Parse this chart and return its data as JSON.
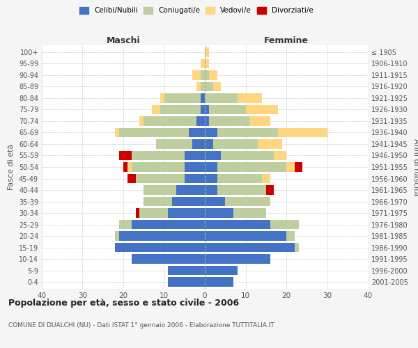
{
  "age_groups": [
    "0-4",
    "5-9",
    "10-14",
    "15-19",
    "20-24",
    "25-29",
    "30-34",
    "35-39",
    "40-44",
    "45-49",
    "50-54",
    "55-59",
    "60-64",
    "65-69",
    "70-74",
    "75-79",
    "80-84",
    "85-89",
    "90-94",
    "95-99",
    "100+"
  ],
  "birth_years": [
    "2001-2005",
    "1996-2000",
    "1991-1995",
    "1986-1990",
    "1981-1985",
    "1976-1980",
    "1971-1975",
    "1966-1970",
    "1961-1965",
    "1956-1960",
    "1951-1955",
    "1946-1950",
    "1941-1945",
    "1936-1940",
    "1931-1935",
    "1926-1930",
    "1921-1925",
    "1916-1920",
    "1911-1915",
    "1906-1910",
    "≤ 1905"
  ],
  "colors": {
    "celibi": "#4472C4",
    "coniugati": "#BFCE9E",
    "vedovi": "#FFD580",
    "divorziati": "#CC0000"
  },
  "maschi": {
    "celibi": [
      9,
      9,
      18,
      22,
      21,
      18,
      9,
      8,
      7,
      5,
      5,
      5,
      3,
      4,
      2,
      1,
      1,
      0,
      0,
      0,
      0
    ],
    "coniugati": [
      0,
      0,
      0,
      0,
      1,
      3,
      7,
      7,
      8,
      12,
      13,
      13,
      9,
      17,
      13,
      10,
      9,
      1,
      1,
      0,
      0
    ],
    "vedovi": [
      0,
      0,
      0,
      0,
      0,
      0,
      0,
      0,
      0,
      0,
      1,
      0,
      0,
      1,
      1,
      2,
      1,
      1,
      2,
      1,
      0
    ],
    "divorziati": [
      0,
      0,
      0,
      0,
      0,
      0,
      1,
      0,
      0,
      2,
      1,
      3,
      0,
      0,
      0,
      0,
      0,
      0,
      0,
      0,
      0
    ]
  },
  "femmine": {
    "celibi": [
      7,
      8,
      16,
      22,
      20,
      16,
      7,
      5,
      3,
      3,
      3,
      4,
      2,
      3,
      1,
      1,
      0,
      0,
      0,
      0,
      0
    ],
    "coniugati": [
      0,
      0,
      0,
      1,
      2,
      7,
      8,
      11,
      12,
      11,
      17,
      13,
      11,
      15,
      10,
      9,
      8,
      2,
      1,
      0,
      0
    ],
    "vedovi": [
      0,
      0,
      0,
      0,
      0,
      0,
      0,
      0,
      0,
      2,
      2,
      3,
      6,
      12,
      5,
      8,
      6,
      2,
      2,
      1,
      1
    ],
    "divorziati": [
      0,
      0,
      0,
      0,
      0,
      0,
      0,
      0,
      2,
      0,
      2,
      0,
      0,
      0,
      0,
      0,
      0,
      0,
      0,
      0,
      0
    ]
  },
  "xlim": 40,
  "title": "Popolazione per età, sesso e stato civile - 2006",
  "subtitle": "COMUNE DI DUALCHI (NU) - Dati ISTAT 1° gennaio 2006 - Elaborazione TUTTITALIA.IT",
  "ylabel_left": "Fasce di età",
  "ylabel_right": "Anni di nascita",
  "legend_labels": [
    "Celibi/Nubili",
    "Coniugati/e",
    "Vedovi/e",
    "Divorziati/e"
  ],
  "maschi_label": "Maschi",
  "femmine_label": "Femmine",
  "bg_color": "#F5F5F5",
  "plot_bg": "#FFFFFF",
  "grid_color": "#CCCCCC"
}
